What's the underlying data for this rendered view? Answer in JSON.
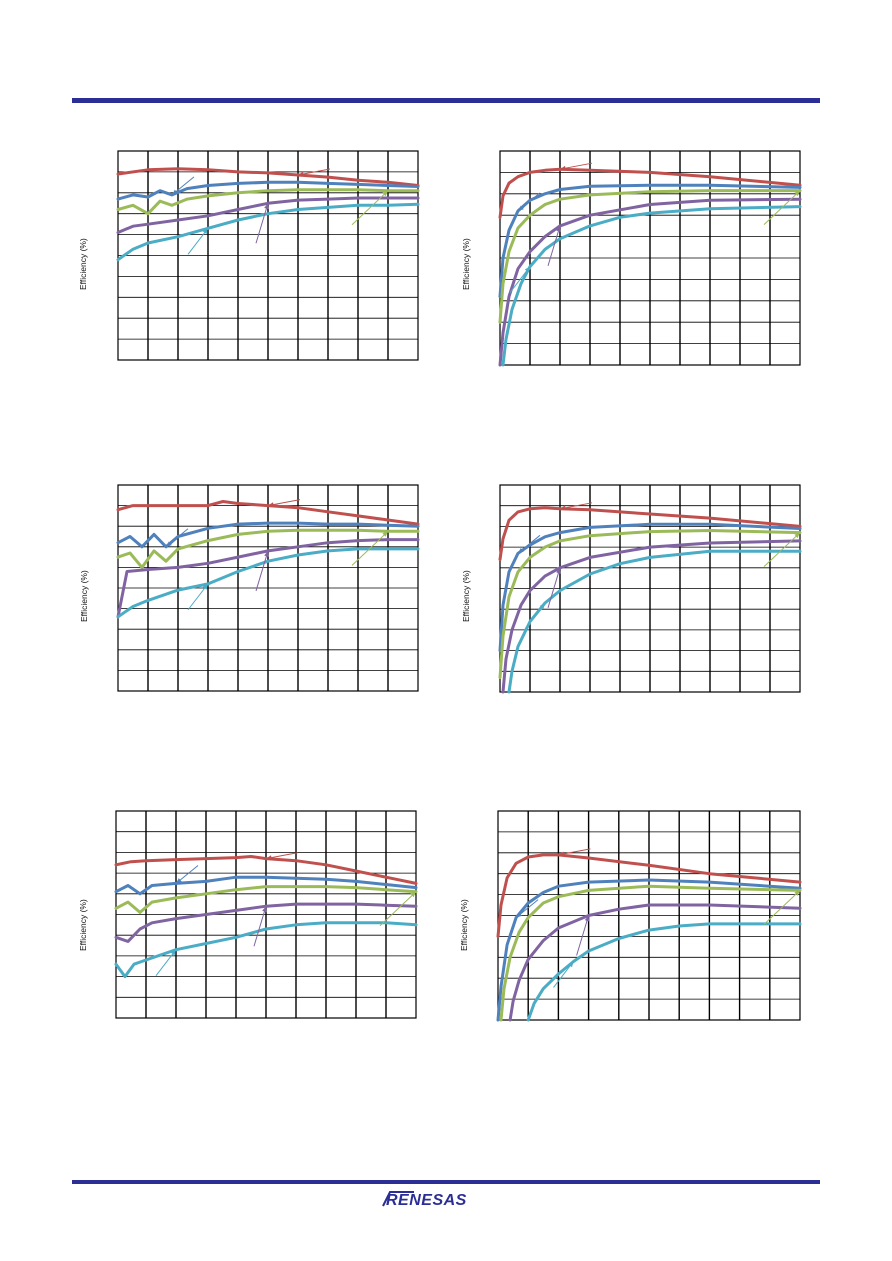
{
  "header": {
    "rule_color": "#2b2f95"
  },
  "footer": {
    "logo_text": "RENESAS",
    "rule_color": "#2b2f95"
  },
  "colors": {
    "red": "#c0504d",
    "blue": "#4f81bd",
    "green": "#9bbb59",
    "purple": "#8064a2",
    "cyan": "#4bacc6"
  },
  "chart_data": [
    {
      "id": "c1",
      "type": "line",
      "scale": "linear",
      "grid": true,
      "ylabel": "Efficiency (%)",
      "xlim": [
        0,
        10
      ],
      "ylim": [
        0,
        10
      ],
      "series": [
        {
          "color": "red",
          "x": [
            0,
            1,
            2,
            3,
            4,
            5,
            6,
            7,
            8,
            9,
            10
          ],
          "y": [
            8.9,
            9.1,
            9.15,
            9.1,
            9.0,
            8.95,
            8.85,
            8.75,
            8.6,
            8.5,
            8.35
          ]
        },
        {
          "color": "blue",
          "x": [
            0,
            0.5,
            1,
            1.4,
            1.8,
            2.3,
            3,
            4,
            5,
            6,
            7,
            8,
            9,
            10
          ],
          "y": [
            7.7,
            7.9,
            7.8,
            8.1,
            7.9,
            8.2,
            8.35,
            8.45,
            8.5,
            8.5,
            8.45,
            8.4,
            8.35,
            8.3
          ]
        },
        {
          "color": "green",
          "x": [
            0,
            0.5,
            1,
            1.4,
            1.8,
            2.3,
            3,
            4,
            5,
            6,
            7,
            8,
            9,
            10
          ],
          "y": [
            7.2,
            7.4,
            7.0,
            7.6,
            7.4,
            7.7,
            7.85,
            8.0,
            8.1,
            8.15,
            8.15,
            8.15,
            8.1,
            8.1
          ]
        },
        {
          "color": "purple",
          "x": [
            0,
            0.5,
            1,
            2,
            3,
            4,
            5,
            6,
            7,
            8,
            9,
            10
          ],
          "y": [
            6.1,
            6.4,
            6.5,
            6.7,
            6.9,
            7.2,
            7.5,
            7.65,
            7.7,
            7.75,
            7.75,
            7.75
          ]
        },
        {
          "color": "cyan",
          "x": [
            0,
            0.5,
            1,
            2,
            3,
            4,
            5,
            6,
            7,
            8,
            9,
            10
          ],
          "y": [
            4.8,
            5.3,
            5.6,
            5.9,
            6.3,
            6.7,
            7.0,
            7.2,
            7.3,
            7.4,
            7.4,
            7.45
          ]
        }
      ]
    },
    {
      "id": "c2",
      "type": "line",
      "scale": "linear",
      "grid": true,
      "ylabel": "Efficiency (%)",
      "xlim": [
        0,
        10
      ],
      "ylim": [
        0,
        10
      ],
      "series": [
        {
          "color": "red",
          "x": [
            0,
            0.1,
            0.3,
            0.6,
            1,
            1.5,
            2,
            3,
            5,
            7,
            10
          ],
          "y": [
            6.9,
            7.9,
            8.5,
            8.8,
            9.0,
            9.1,
            9.15,
            9.1,
            9.0,
            8.8,
            8.4
          ]
        },
        {
          "color": "blue",
          "x": [
            0,
            0.1,
            0.3,
            0.6,
            1,
            1.5,
            2,
            3,
            5,
            7,
            10
          ],
          "y": [
            3.2,
            5.0,
            6.3,
            7.2,
            7.7,
            8.0,
            8.2,
            8.35,
            8.4,
            8.4,
            8.3
          ]
        },
        {
          "color": "green",
          "x": [
            0,
            0.1,
            0.3,
            0.6,
            1,
            1.5,
            2,
            3,
            5,
            7,
            10
          ],
          "y": [
            2.0,
            3.8,
            5.3,
            6.4,
            7.0,
            7.5,
            7.75,
            7.95,
            8.1,
            8.15,
            8.15
          ]
        },
        {
          "color": "purple",
          "x": [
            0,
            0.1,
            0.3,
            0.6,
            1,
            1.5,
            2,
            3,
            5,
            7,
            10
          ],
          "y": [
            0.0,
            1.5,
            3.2,
            4.5,
            5.3,
            6.0,
            6.5,
            7.0,
            7.5,
            7.7,
            7.75
          ]
        },
        {
          "color": "cyan",
          "x": [
            0.1,
            0.2,
            0.4,
            0.7,
            1,
            1.5,
            2,
            3,
            4,
            5,
            7,
            10
          ],
          "y": [
            0.0,
            1.2,
            2.6,
            3.8,
            4.6,
            5.4,
            5.9,
            6.5,
            6.9,
            7.1,
            7.3,
            7.4
          ]
        }
      ]
    },
    {
      "id": "c3",
      "type": "line",
      "scale": "linear",
      "grid": true,
      "ylabel": "Efficiency (%)",
      "xlim": [
        0,
        10
      ],
      "ylim": [
        0,
        10
      ],
      "series": [
        {
          "color": "red",
          "x": [
            0,
            0.5,
            1,
            2,
            3,
            3.5,
            4,
            5,
            6,
            7,
            8,
            9,
            10
          ],
          "y": [
            8.8,
            9.0,
            9.0,
            9.0,
            9.0,
            9.2,
            9.1,
            9.0,
            8.9,
            8.7,
            8.5,
            8.3,
            8.1
          ]
        },
        {
          "color": "blue",
          "x": [
            0,
            0.4,
            0.8,
            1.2,
            1.6,
            2,
            3,
            4,
            5,
            6,
            7,
            8,
            9,
            10
          ],
          "y": [
            7.2,
            7.5,
            7.0,
            7.6,
            7.0,
            7.5,
            7.9,
            8.1,
            8.15,
            8.15,
            8.1,
            8.1,
            8.05,
            8.0
          ]
        },
        {
          "color": "green",
          "x": [
            0,
            0.4,
            0.8,
            1.2,
            1.6,
            2,
            3,
            4,
            5,
            6,
            7,
            8,
            9,
            10
          ],
          "y": [
            6.5,
            6.7,
            6.0,
            6.8,
            6.3,
            6.9,
            7.3,
            7.6,
            7.75,
            7.8,
            7.8,
            7.8,
            7.75,
            7.75
          ]
        },
        {
          "color": "purple",
          "x": [
            0,
            0.3,
            1,
            2,
            3,
            4,
            5,
            6,
            7,
            8,
            9,
            10
          ],
          "y": [
            3.6,
            5.8,
            5.9,
            6.0,
            6.2,
            6.5,
            6.8,
            7.0,
            7.2,
            7.3,
            7.35,
            7.35
          ]
        },
        {
          "color": "cyan",
          "x": [
            0,
            0.5,
            1,
            2,
            3,
            4,
            5,
            6,
            7,
            8,
            9,
            10
          ],
          "y": [
            3.6,
            4.1,
            4.4,
            4.9,
            5.2,
            5.8,
            6.3,
            6.6,
            6.8,
            6.9,
            6.9,
            6.9
          ]
        }
      ]
    },
    {
      "id": "c4",
      "type": "line",
      "scale": "linear",
      "grid": true,
      "ylabel": "Efficiency (%)",
      "xlim": [
        0,
        10
      ],
      "ylim": [
        0,
        10
      ],
      "series": [
        {
          "color": "red",
          "x": [
            0,
            0.1,
            0.3,
            0.6,
            1,
            1.5,
            2,
            3,
            5,
            7,
            10
          ],
          "y": [
            6.4,
            7.4,
            8.3,
            8.7,
            8.85,
            8.9,
            8.85,
            8.8,
            8.6,
            8.4,
            8.0
          ]
        },
        {
          "color": "blue",
          "x": [
            0,
            0.1,
            0.3,
            0.6,
            1,
            1.5,
            2,
            3,
            5,
            7,
            10
          ],
          "y": [
            2.0,
            4.2,
            5.8,
            6.7,
            7.1,
            7.5,
            7.7,
            7.95,
            8.1,
            8.1,
            7.9
          ]
        },
        {
          "color": "green",
          "x": [
            0,
            0.1,
            0.3,
            0.6,
            1,
            1.5,
            2,
            3,
            5,
            7,
            10
          ],
          "y": [
            0.7,
            2.7,
            4.6,
            5.8,
            6.5,
            7.0,
            7.3,
            7.55,
            7.75,
            7.8,
            7.7
          ]
        },
        {
          "color": "purple",
          "x": [
            0.1,
            0.2,
            0.4,
            0.7,
            1,
            1.5,
            2,
            3,
            5,
            7,
            10
          ],
          "y": [
            0.0,
            1.6,
            3.0,
            4.2,
            4.9,
            5.6,
            6.0,
            6.5,
            7.0,
            7.2,
            7.3
          ]
        },
        {
          "color": "cyan",
          "x": [
            0.3,
            0.4,
            0.6,
            1,
            1.5,
            2,
            3,
            4,
            5,
            7,
            10
          ],
          "y": [
            0.0,
            1.0,
            2.2,
            3.4,
            4.3,
            4.9,
            5.7,
            6.2,
            6.5,
            6.8,
            6.8
          ]
        }
      ]
    },
    {
      "id": "c5",
      "type": "line",
      "scale": "linear",
      "grid": true,
      "ylabel": "Efficiency (%)",
      "xlim": [
        0,
        10
      ],
      "ylim": [
        0,
        10
      ],
      "series": [
        {
          "color": "red",
          "x": [
            0,
            0.5,
            1,
            2,
            3,
            4,
            4.5,
            5,
            6,
            7,
            8,
            9,
            10
          ],
          "y": [
            7.4,
            7.55,
            7.6,
            7.65,
            7.7,
            7.75,
            7.8,
            7.7,
            7.6,
            7.4,
            7.1,
            6.8,
            6.5
          ]
        },
        {
          "color": "blue",
          "x": [
            0,
            0.4,
            0.8,
            1.2,
            2,
            3,
            4,
            5,
            6,
            7,
            8,
            9,
            10
          ],
          "y": [
            6.1,
            6.4,
            6.0,
            6.4,
            6.5,
            6.6,
            6.8,
            6.8,
            6.75,
            6.7,
            6.6,
            6.45,
            6.3
          ]
        },
        {
          "color": "green",
          "x": [
            0,
            0.4,
            0.8,
            1.2,
            2,
            3,
            4,
            5,
            6,
            7,
            8,
            9,
            10
          ],
          "y": [
            5.3,
            5.6,
            5.1,
            5.6,
            5.8,
            6.0,
            6.2,
            6.35,
            6.35,
            6.35,
            6.3,
            6.2,
            6.1
          ]
        },
        {
          "color": "purple",
          "x": [
            0,
            0.4,
            0.8,
            1.2,
            2,
            3,
            4,
            5,
            6,
            7,
            8,
            9,
            10
          ],
          "y": [
            3.9,
            3.7,
            4.3,
            4.6,
            4.8,
            5.0,
            5.2,
            5.4,
            5.5,
            5.5,
            5.5,
            5.45,
            5.4
          ]
        },
        {
          "color": "cyan",
          "x": [
            0,
            0.3,
            0.6,
            1,
            2,
            3,
            4,
            5,
            6,
            7,
            8,
            9,
            10
          ],
          "y": [
            2.6,
            2.0,
            2.6,
            2.8,
            3.3,
            3.6,
            3.9,
            4.3,
            4.5,
            4.6,
            4.6,
            4.6,
            4.5
          ]
        }
      ]
    },
    {
      "id": "c6",
      "type": "line",
      "scale": "linear",
      "grid": true,
      "ylabel": "Efficiency (%)",
      "xlim": [
        0,
        10
      ],
      "ylim": [
        0,
        10
      ],
      "series": [
        {
          "color": "red",
          "x": [
            0,
            0.1,
            0.3,
            0.6,
            1,
            1.5,
            2,
            3,
            5,
            7,
            10
          ],
          "y": [
            4.0,
            5.5,
            6.8,
            7.5,
            7.8,
            7.9,
            7.9,
            7.75,
            7.4,
            7.0,
            6.6
          ]
        },
        {
          "color": "blue",
          "x": [
            0,
            0.1,
            0.3,
            0.6,
            1,
            1.5,
            2,
            3,
            5,
            7,
            10
          ],
          "y": [
            0.0,
            1.6,
            3.6,
            4.9,
            5.6,
            6.1,
            6.4,
            6.6,
            6.7,
            6.6,
            6.3
          ]
        },
        {
          "color": "green",
          "x": [
            0.1,
            0.2,
            0.4,
            0.7,
            1,
            1.5,
            2,
            3,
            5,
            7,
            10
          ],
          "y": [
            0.0,
            1.5,
            3.0,
            4.2,
            4.9,
            5.6,
            5.9,
            6.2,
            6.4,
            6.3,
            6.2
          ]
        },
        {
          "color": "purple",
          "x": [
            0.4,
            0.5,
            0.7,
            1,
            1.5,
            2,
            3,
            4,
            5,
            7,
            10
          ],
          "y": [
            0.0,
            0.9,
            1.9,
            2.9,
            3.8,
            4.4,
            5.0,
            5.3,
            5.5,
            5.5,
            5.35
          ]
        },
        {
          "color": "cyan",
          "x": [
            1,
            1.2,
            1.5,
            2,
            2.5,
            3,
            4,
            5,
            6,
            7,
            10
          ],
          "y": [
            0.0,
            0.8,
            1.5,
            2.2,
            2.8,
            3.3,
            3.9,
            4.3,
            4.5,
            4.6,
            4.6
          ]
        }
      ]
    }
  ]
}
